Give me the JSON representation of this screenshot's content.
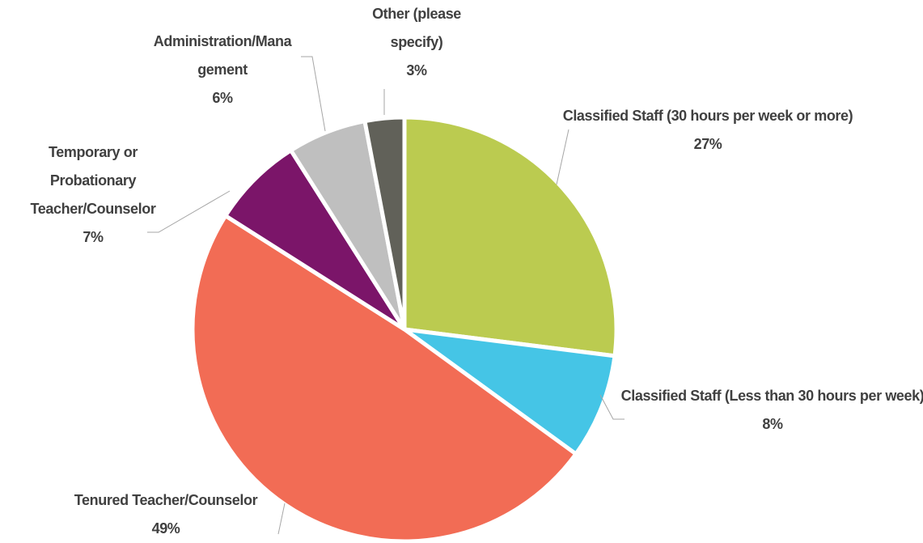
{
  "chart_data": {
    "type": "pie",
    "categories": [
      "Classified Staff (30 hours per week or more)",
      "Classified Staff (Less than 30 hours per week)",
      "Tenured Teacher/Counselor",
      "Temporary or Probationary Teacher/Counselor",
      "Administration/Management",
      "Other (please specify)"
    ],
    "values": [
      27,
      8,
      49,
      7,
      6,
      3
    ],
    "value_labels": [
      "27%",
      "8%",
      "49%",
      "7%",
      "6%",
      "3%"
    ],
    "colors": [
      "#bbcb50",
      "#45c5e6",
      "#f26c55",
      "#7b1569",
      "#bfbfbf",
      "#616159"
    ]
  }
}
